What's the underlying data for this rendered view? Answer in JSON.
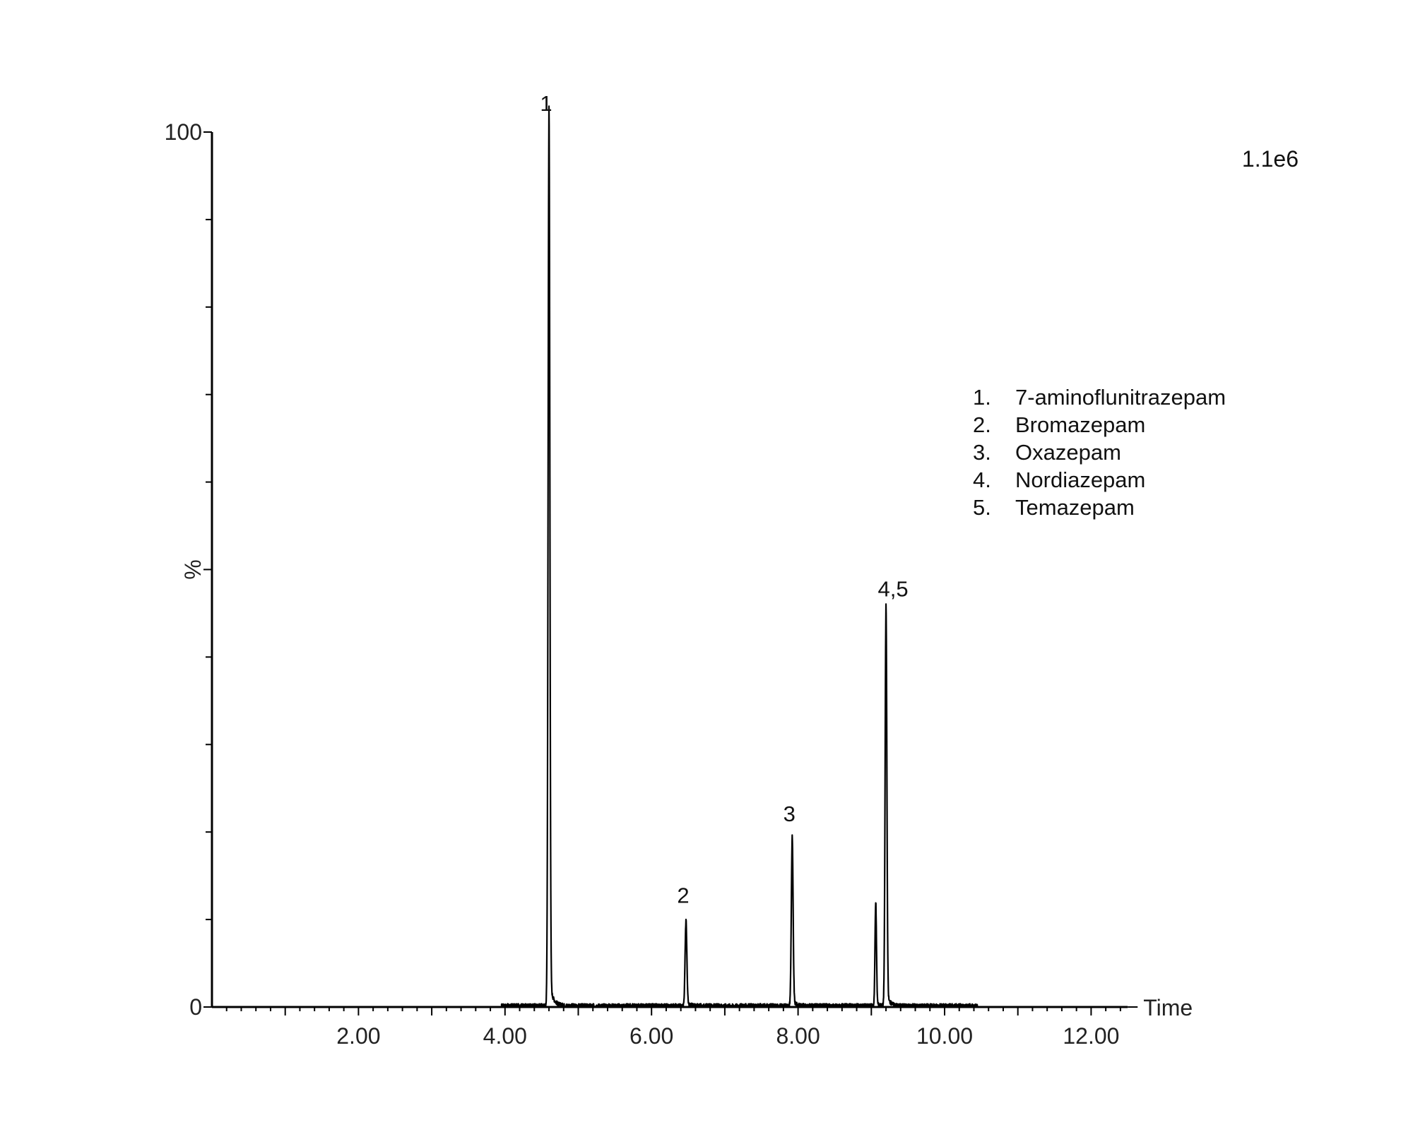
{
  "chart_data": {
    "type": "line",
    "xlabel": "Time",
    "ylabel": "%",
    "xlim": [
      0,
      12.5
    ],
    "ylim": [
      0,
      100
    ],
    "x_ticks": [
      "2.00",
      "4.00",
      "6.00",
      "8.00",
      "10.00",
      "12.00"
    ],
    "y_ticks": [
      "0",
      "100"
    ],
    "scale_label": "1.1e6",
    "grid": false,
    "trace": {
      "start": 3.95,
      "end": 10.45,
      "peaks": [
        {
          "label": "1",
          "rt": 4.6,
          "height": 100
        },
        {
          "label": "2",
          "rt": 6.47,
          "height": 9.5
        },
        {
          "label": "3",
          "rt": 7.92,
          "height": 18.8
        },
        {
          "label": "4,5",
          "rt": 9.2,
          "height": 44.5,
          "shoulder": {
            "rt": 9.06,
            "height": 11.5
          }
        }
      ]
    },
    "legend": [
      {
        "num": "1.",
        "name": "7-aminoflunitrazepam"
      },
      {
        "num": "2.",
        "name": "Bromazepam"
      },
      {
        "num": "3.",
        "name": "Oxazepam"
      },
      {
        "num": "4.",
        "name": "Nordiazepam"
      },
      {
        "num": "5.",
        "name": "Temazepam"
      }
    ]
  }
}
